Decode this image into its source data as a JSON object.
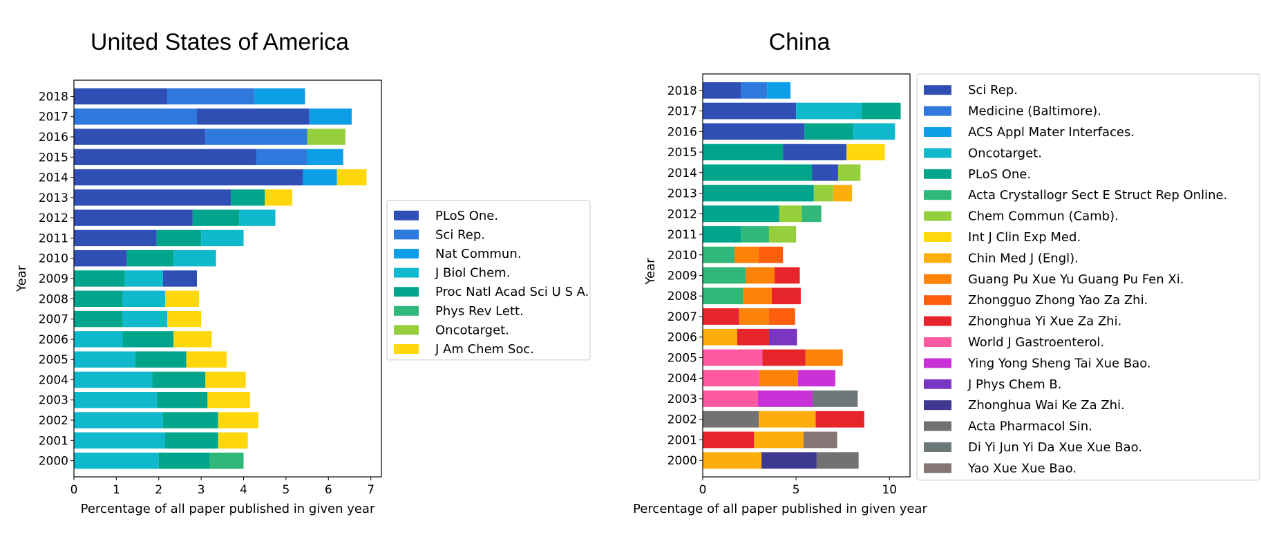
{
  "chart_data": [
    {
      "type": "bar",
      "orientation": "horizontal",
      "stacked": true,
      "title": "United States of America",
      "xlabel": "Percentage of all paper published in given year",
      "ylabel": "Year",
      "xlim": [
        0,
        7.25
      ],
      "xticks": [
        "0",
        "1",
        "2",
        "3",
        "4",
        "5",
        "6",
        "7"
      ],
      "legend_position": "right",
      "legend": [
        {
          "name": "PLoS One.",
          "color": "#2f4fb5"
        },
        {
          "name": "Sci Rep.",
          "color": "#2f78dc"
        },
        {
          "name": "Nat Commun.",
          "color": "#0c9fe8"
        },
        {
          "name": "J Biol Chem.",
          "color": "#10b8cc"
        },
        {
          "name": "Proc Natl Acad Sci U S A.",
          "color": "#00a58c"
        },
        {
          "name": "Phys Rev Lett.",
          "color": "#2fb87a"
        },
        {
          "name": "Oncotarget.",
          "color": "#96cf3c"
        },
        {
          "name": "J Am Chem Soc.",
          "color": "#fed70c"
        }
      ],
      "categories": [
        "2018",
        "2017",
        "2016",
        "2015",
        "2014",
        "2013",
        "2012",
        "2011",
        "2010",
        "2009",
        "2008",
        "2007",
        "2006",
        "2005",
        "2004",
        "2003",
        "2002",
        "2001",
        "2000"
      ],
      "rows": [
        {
          "year": "2018",
          "segments": [
            {
              "journal": "PLoS One.",
              "value": 2.2
            },
            {
              "journal": "Sci Rep.",
              "value": 2.05
            },
            {
              "journal": "Nat Commun.",
              "value": 1.2
            }
          ]
        },
        {
          "year": "2017",
          "segments": [
            {
              "journal": "Sci Rep.",
              "value": 2.9
            },
            {
              "journal": "PLoS One.",
              "value": 2.65
            },
            {
              "journal": "Nat Commun.",
              "value": 1.0
            }
          ]
        },
        {
          "year": "2016",
          "segments": [
            {
              "journal": "PLoS One.",
              "value": 3.1
            },
            {
              "journal": "Sci Rep.",
              "value": 2.4
            },
            {
              "journal": "Oncotarget.",
              "value": 0.9
            }
          ]
        },
        {
          "year": "2015",
          "segments": [
            {
              "journal": "PLoS One.",
              "value": 4.3
            },
            {
              "journal": "Sci Rep.",
              "value": 1.2
            },
            {
              "journal": "Nat Commun.",
              "value": 0.85
            }
          ]
        },
        {
          "year": "2014",
          "segments": [
            {
              "journal": "PLoS One.",
              "value": 5.4
            },
            {
              "journal": "Nat Commun.",
              "value": 0.8
            },
            {
              "journal": "J Am Chem Soc.",
              "value": 0.7
            }
          ]
        },
        {
          "year": "2013",
          "segments": [
            {
              "journal": "PLoS One.",
              "value": 3.7
            },
            {
              "journal": "Proc Natl Acad Sci U S A.",
              "value": 0.8
            },
            {
              "journal": "J Am Chem Soc.",
              "value": 0.65
            }
          ]
        },
        {
          "year": "2012",
          "segments": [
            {
              "journal": "PLoS One.",
              "value": 2.8
            },
            {
              "journal": "Proc Natl Acad Sci U S A.",
              "value": 1.1
            },
            {
              "journal": "J Biol Chem.",
              "value": 0.85
            }
          ]
        },
        {
          "year": "2011",
          "segments": [
            {
              "journal": "PLoS One.",
              "value": 1.95
            },
            {
              "journal": "Proc Natl Acad Sci U S A.",
              "value": 1.05
            },
            {
              "journal": "J Biol Chem.",
              "value": 1.0
            }
          ]
        },
        {
          "year": "2010",
          "segments": [
            {
              "journal": "PLoS One.",
              "value": 1.25
            },
            {
              "journal": "Proc Natl Acad Sci U S A.",
              "value": 1.1
            },
            {
              "journal": "J Biol Chem.",
              "value": 1.0
            }
          ]
        },
        {
          "year": "2009",
          "segments": [
            {
              "journal": "Proc Natl Acad Sci U S A.",
              "value": 1.2
            },
            {
              "journal": "J Biol Chem.",
              "value": 0.9
            },
            {
              "journal": "PLoS One.",
              "value": 0.8
            }
          ]
        },
        {
          "year": "2008",
          "segments": [
            {
              "journal": "Proc Natl Acad Sci U S A.",
              "value": 1.15
            },
            {
              "journal": "J Biol Chem.",
              "value": 1.0
            },
            {
              "journal": "J Am Chem Soc.",
              "value": 0.8
            }
          ]
        },
        {
          "year": "2007",
          "segments": [
            {
              "journal": "Proc Natl Acad Sci U S A.",
              "value": 1.15
            },
            {
              "journal": "J Biol Chem.",
              "value": 1.05
            },
            {
              "journal": "J Am Chem Soc.",
              "value": 0.8
            }
          ]
        },
        {
          "year": "2006",
          "segments": [
            {
              "journal": "J Biol Chem.",
              "value": 1.15
            },
            {
              "journal": "Proc Natl Acad Sci U S A.",
              "value": 1.2
            },
            {
              "journal": "J Am Chem Soc.",
              "value": 0.9
            }
          ]
        },
        {
          "year": "2005",
          "segments": [
            {
              "journal": "J Biol Chem.",
              "value": 1.45
            },
            {
              "journal": "Proc Natl Acad Sci U S A.",
              "value": 1.2
            },
            {
              "journal": "J Am Chem Soc.",
              "value": 0.95
            }
          ]
        },
        {
          "year": "2004",
          "segments": [
            {
              "journal": "J Biol Chem.",
              "value": 1.85
            },
            {
              "journal": "Proc Natl Acad Sci U S A.",
              "value": 1.25
            },
            {
              "journal": "J Am Chem Soc.",
              "value": 0.95
            }
          ]
        },
        {
          "year": "2003",
          "segments": [
            {
              "journal": "J Biol Chem.",
              "value": 1.95
            },
            {
              "journal": "Proc Natl Acad Sci U S A.",
              "value": 1.2
            },
            {
              "journal": "J Am Chem Soc.",
              "value": 1.0
            }
          ]
        },
        {
          "year": "2002",
          "segments": [
            {
              "journal": "J Biol Chem.",
              "value": 2.1
            },
            {
              "journal": "Proc Natl Acad Sci U S A.",
              "value": 1.3
            },
            {
              "journal": "J Am Chem Soc.",
              "value": 0.95
            }
          ]
        },
        {
          "year": "2001",
          "segments": [
            {
              "journal": "J Biol Chem.",
              "value": 2.15
            },
            {
              "journal": "Proc Natl Acad Sci U S A.",
              "value": 1.25
            },
            {
              "journal": "J Am Chem Soc.",
              "value": 0.7
            }
          ]
        },
        {
          "year": "2000",
          "segments": [
            {
              "journal": "J Biol Chem.",
              "value": 2.0
            },
            {
              "journal": "Proc Natl Acad Sci U S A.",
              "value": 1.2
            },
            {
              "journal": "Phys Rev Lett.",
              "value": 0.8
            }
          ]
        }
      ]
    },
    {
      "type": "bar",
      "orientation": "horizontal",
      "stacked": true,
      "title": "China",
      "xlabel": "Percentage of all paper published in given year",
      "ylabel": "Year",
      "xlim": [
        0,
        11.1
      ],
      "xticks": [
        "0",
        "5",
        "10"
      ],
      "legend_position": "right",
      "legend": [
        {
          "name": "Sci Rep.",
          "color": "#2f4fb5"
        },
        {
          "name": "Medicine (Baltimore).",
          "color": "#2f78dc"
        },
        {
          "name": "ACS Appl Mater Interfaces.",
          "color": "#0c9fe8"
        },
        {
          "name": "Oncotarget.",
          "color": "#10b8cc"
        },
        {
          "name": "PLoS One.",
          "color": "#00a58c"
        },
        {
          "name": "Acta Crystallogr Sect E Struct Rep Online.",
          "color": "#2fb87a"
        },
        {
          "name": "Chem Commun (Camb).",
          "color": "#96cf3c"
        },
        {
          "name": "Int J Clin Exp Med.",
          "color": "#fed70c"
        },
        {
          "name": "Chin Med J (Engl).",
          "color": "#fdae0c"
        },
        {
          "name": "Guang Pu Xue Yu Guang Pu Fen Xi.",
          "color": "#fd8208"
        },
        {
          "name": "Zhongguo Zhong Yao Za Zhi.",
          "color": "#fd5e0c"
        },
        {
          "name": "Zhonghua Yi Xue Za Zhi.",
          "color": "#e6252b"
        },
        {
          "name": "World J Gastroenterol.",
          "color": "#fe58a1"
        },
        {
          "name": "Ying Yong Sheng Tai Xue Bao.",
          "color": "#c832d6"
        },
        {
          "name": "J Phys Chem B.",
          "color": "#7a36c2"
        },
        {
          "name": "Zhonghua Wai Ke Za Zhi.",
          "color": "#3f3890"
        },
        {
          "name": "Acta Pharmacol Sin.",
          "color": "#727272"
        },
        {
          "name": "Di Yi Jun Yi Da Xue Xue Bao.",
          "color": "#6c7878"
        },
        {
          "name": "Yao Xue Xue Bao.",
          "color": "#857575"
        }
      ],
      "categories": [
        "2018",
        "2017",
        "2016",
        "2015",
        "2014",
        "2013",
        "2012",
        "2011",
        "2010",
        "2009",
        "2008",
        "2007",
        "2006",
        "2005",
        "2004",
        "2003",
        "2002",
        "2001",
        "2000"
      ],
      "rows": [
        {
          "year": "2018",
          "segments": [
            {
              "journal": "Sci Rep.",
              "value": 2.05
            },
            {
              "journal": "Medicine (Baltimore).",
              "value": 1.4
            },
            {
              "journal": "ACS Appl Mater Interfaces.",
              "value": 1.25
            }
          ]
        },
        {
          "year": "2017",
          "segments": [
            {
              "journal": "Sci Rep.",
              "value": 5.0
            },
            {
              "journal": "Oncotarget.",
              "value": 3.5
            },
            {
              "journal": "PLoS One.",
              "value": 2.1
            }
          ]
        },
        {
          "year": "2016",
          "segments": [
            {
              "journal": "Sci Rep.",
              "value": 5.45
            },
            {
              "journal": "PLoS One.",
              "value": 2.6
            },
            {
              "journal": "Oncotarget.",
              "value": 2.25
            }
          ]
        },
        {
          "year": "2015",
          "segments": [
            {
              "journal": "PLoS One.",
              "value": 4.3
            },
            {
              "journal": "Sci Rep.",
              "value": 3.4
            },
            {
              "journal": "Int J Clin Exp Med.",
              "value": 2.05
            }
          ]
        },
        {
          "year": "2014",
          "segments": [
            {
              "journal": "PLoS One.",
              "value": 5.85
            },
            {
              "journal": "Sci Rep.",
              "value": 1.4
            },
            {
              "journal": "Chem Commun (Camb).",
              "value": 1.2
            }
          ]
        },
        {
          "year": "2013",
          "segments": [
            {
              "journal": "PLoS One.",
              "value": 5.95
            },
            {
              "journal": "Chem Commun (Camb).",
              "value": 1.05
            },
            {
              "journal": "Chin Med J (Engl).",
              "value": 1.0
            }
          ]
        },
        {
          "year": "2012",
          "segments": [
            {
              "journal": "PLoS One.",
              "value": 4.1
            },
            {
              "journal": "Chem Commun (Camb).",
              "value": 1.2
            },
            {
              "journal": "Acta Crystallogr Sect E Struct Rep Online.",
              "value": 1.05
            }
          ]
        },
        {
          "year": "2011",
          "segments": [
            {
              "journal": "PLoS One.",
              "value": 2.05
            },
            {
              "journal": "Acta Crystallogr Sect E Struct Rep Online.",
              "value": 1.5
            },
            {
              "journal": "Chem Commun (Camb).",
              "value": 1.45
            }
          ]
        },
        {
          "year": "2010",
          "segments": [
            {
              "journal": "Acta Crystallogr Sect E Struct Rep Online.",
              "value": 1.7
            },
            {
              "journal": "Guang Pu Xue Yu Guang Pu Fen Xi.",
              "value": 1.3
            },
            {
              "journal": "Zhongguo Zhong Yao Za Zhi.",
              "value": 1.3
            }
          ]
        },
        {
          "year": "2009",
          "segments": [
            {
              "journal": "Acta Crystallogr Sect E Struct Rep Online.",
              "value": 2.3
            },
            {
              "journal": "Guang Pu Xue Yu Guang Pu Fen Xi.",
              "value": 1.55
            },
            {
              "journal": "Zhonghua Yi Xue Za Zhi.",
              "value": 1.35
            }
          ]
        },
        {
          "year": "2008",
          "segments": [
            {
              "journal": "Acta Crystallogr Sect E Struct Rep Online.",
              "value": 2.15
            },
            {
              "journal": "Guang Pu Xue Yu Guang Pu Fen Xi.",
              "value": 1.55
            },
            {
              "journal": "Zhonghua Yi Xue Za Zhi.",
              "value": 1.55
            }
          ]
        },
        {
          "year": "2007",
          "segments": [
            {
              "journal": "Zhonghua Yi Xue Za Zhi.",
              "value": 1.95
            },
            {
              "journal": "Guang Pu Xue Yu Guang Pu Fen Xi.",
              "value": 1.6
            },
            {
              "journal": "Zhongguo Zhong Yao Za Zhi.",
              "value": 1.4
            }
          ]
        },
        {
          "year": "2006",
          "segments": [
            {
              "journal": "Chin Med J (Engl).",
              "value": 1.85
            },
            {
              "journal": "Zhonghua Yi Xue Za Zhi.",
              "value": 1.7
            },
            {
              "journal": "J Phys Chem B.",
              "value": 1.5
            }
          ]
        },
        {
          "year": "2005",
          "segments": [
            {
              "journal": "World J Gastroenterol.",
              "value": 3.2
            },
            {
              "journal": "Zhonghua Yi Xue Za Zhi.",
              "value": 2.3
            },
            {
              "journal": "Guang Pu Xue Yu Guang Pu Fen Xi.",
              "value": 2.0
            }
          ]
        },
        {
          "year": "2004",
          "segments": [
            {
              "journal": "World J Gastroenterol.",
              "value": 3.05
            },
            {
              "journal": "Guang Pu Xue Yu Guang Pu Fen Xi.",
              "value": 2.05
            },
            {
              "journal": "Ying Yong Sheng Tai Xue Bao.",
              "value": 2.0
            }
          ]
        },
        {
          "year": "2003",
          "segments": [
            {
              "journal": "World J Gastroenterol.",
              "value": 2.95
            },
            {
              "journal": "Ying Yong Sheng Tai Xue Bao.",
              "value": 2.95
            },
            {
              "journal": "Di Yi Jun Yi Da Xue Xue Bao.",
              "value": 2.4
            }
          ]
        },
        {
          "year": "2002",
          "segments": [
            {
              "journal": "Acta Pharmacol Sin.",
              "value": 3.0
            },
            {
              "journal": "Chin Med J (Engl).",
              "value": 3.05
            },
            {
              "journal": "Zhonghua Yi Xue Za Zhi.",
              "value": 2.6
            }
          ]
        },
        {
          "year": "2001",
          "segments": [
            {
              "journal": "Zhonghua Yi Xue Za Zhi.",
              "value": 2.75
            },
            {
              "journal": "Chin Med J (Engl).",
              "value": 2.65
            },
            {
              "journal": "Yao Xue Xue Bao.",
              "value": 1.8
            }
          ]
        },
        {
          "year": "2000",
          "segments": [
            {
              "journal": "Chin Med J (Engl).",
              "value": 3.15
            },
            {
              "journal": "Zhonghua Wai Ke Za Zhi.",
              "value": 2.95
            },
            {
              "journal": "Acta Pharmacol Sin.",
              "value": 2.25
            }
          ]
        }
      ]
    }
  ]
}
